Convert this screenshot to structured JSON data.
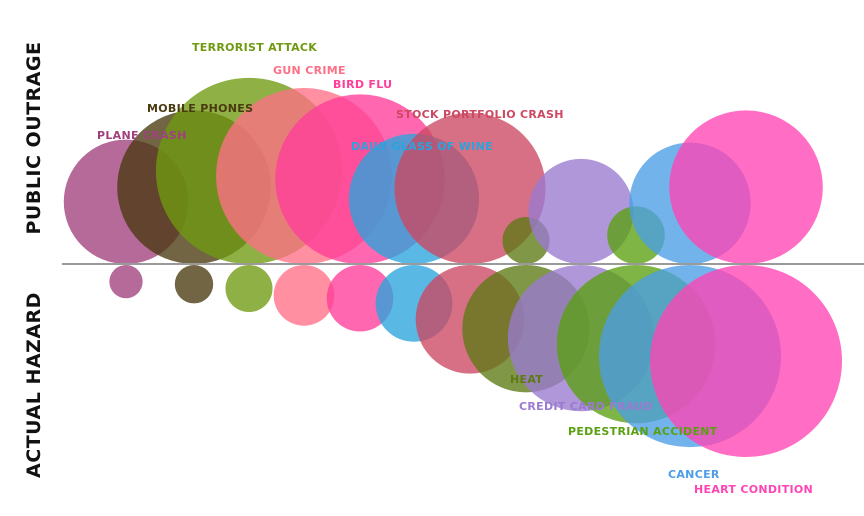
{
  "chart_data": {
    "type": "bubble-diverging",
    "ylabel_top": "PUBLIC OUTRAGE",
    "ylabel_bottom": "ACTUAL HAZARD",
    "grid": false,
    "legend": "none",
    "categories": [
      {
        "label": "PLANE CRASH",
        "color": "#a0407e",
        "outrage": 42,
        "hazard": 3
      },
      {
        "label": "MOBILE PHONES",
        "color": "#4a3a10",
        "outrage": 64,
        "hazard": 4
      },
      {
        "label": "TERRORIST ATTACK",
        "color": "#6f9a10",
        "outrage": 94,
        "hazard": 6
      },
      {
        "label": "GUN CRIME",
        "color": "#ff6f86",
        "outrage": 84,
        "hazard": 10
      },
      {
        "label": "BIRD FLU",
        "color": "#ff3e9a",
        "outrage": 78,
        "hazard": 12
      },
      {
        "label": "DAILY GLASS OF WINE",
        "color": "#2aa4dc",
        "outrage": 46,
        "hazard": 16
      },
      {
        "label": "STOCK PORTFOLIO CRASH",
        "color": "#cc4862",
        "outrage": 62,
        "hazard": 32
      },
      {
        "label": "HEAT",
        "color": "#5e7a14",
        "outrage": 6,
        "hazard": 44
      },
      {
        "label": "CREDIT CARD FRAUD",
        "color": "#9a7ad0",
        "outrage": 30,
        "hazard": 58
      },
      {
        "label": "PEDESTRIAN ACCIDENT",
        "color": "#5aa010",
        "outrage": 9,
        "hazard": 68
      },
      {
        "label": "CANCER",
        "color": "#4c9ee6",
        "outrage": 40,
        "hazard": 90
      },
      {
        "label": "HEART CONDITION",
        "color": "#ff44b4",
        "outrage": 64,
        "hazard": 100
      }
    ]
  }
}
